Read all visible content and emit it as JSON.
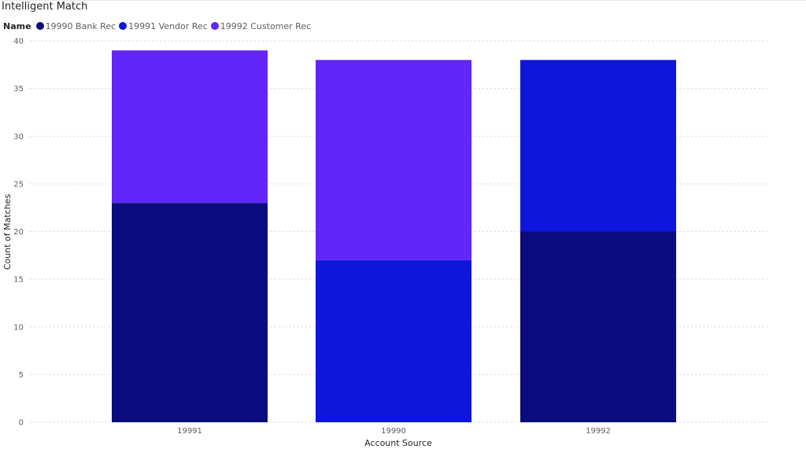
{
  "chart_data": {
    "type": "bar",
    "stacked": true,
    "title": "Intelligent Match",
    "legend": {
      "title": "Name",
      "position": "top-left",
      "entries": [
        {
          "name": "19990 Bank Rec",
          "color": "#0b0c7d"
        },
        {
          "name": "19991 Vendor Rec",
          "color": "#0f16db"
        },
        {
          "name": "19992 Customer Rec",
          "color": "#6126f8"
        }
      ]
    },
    "categories": [
      "19991",
      "19990",
      "19992"
    ],
    "segments": [
      [
        {
          "series": "19990 Bank Rec",
          "value": 23,
          "color": "#0b0c7d"
        },
        {
          "series": "19992 Customer Rec",
          "value": 16,
          "color": "#6126f8"
        }
      ],
      [
        {
          "series": "19991 Vendor Rec",
          "value": 17,
          "color": "#0f16db"
        },
        {
          "series": "19992 Customer Rec",
          "value": 21,
          "color": "#6126f8"
        }
      ],
      [
        {
          "series": "19990 Bank Rec",
          "value": 20,
          "color": "#0b0c7d"
        },
        {
          "series": "19991 Vendor Rec",
          "value": 18,
          "color": "#0f16db"
        }
      ]
    ],
    "xlabel": "Account Source",
    "ylabel": "Count of Matches",
    "ylim": [
      0,
      40
    ],
    "yticks": [
      0,
      5,
      10,
      15,
      20,
      25,
      30,
      35,
      40
    ],
    "grid": true,
    "grid_style": "dotted"
  }
}
